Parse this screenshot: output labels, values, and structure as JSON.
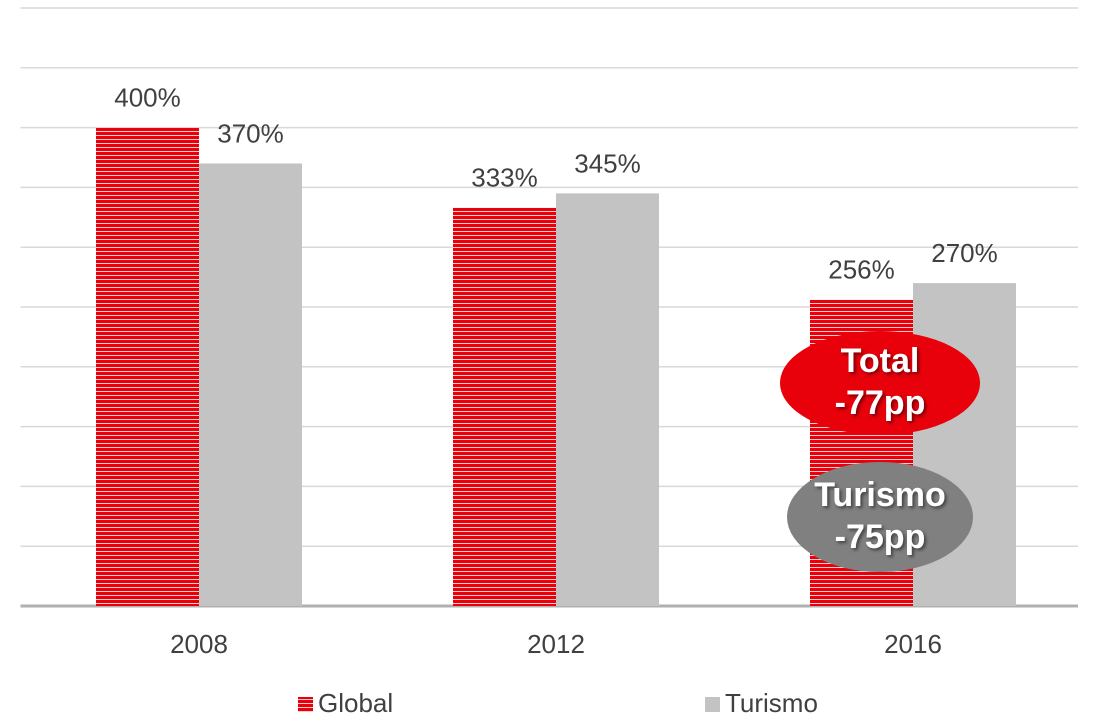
{
  "chart_data": {
    "type": "bar",
    "categories": [
      "2008",
      "2012",
      "2016"
    ],
    "series": [
      {
        "name": "Global",
        "color": "#e8000b",
        "values": [
          400,
          333,
          256
        ],
        "value_labels": [
          "400%",
          "333%",
          "256%"
        ]
      },
      {
        "name": "Turismo",
        "color": "#c3c3c3",
        "values": [
          370,
          345,
          270
        ],
        "value_labels": [
          "370%",
          "345%",
          "270%"
        ]
      }
    ],
    "ylim": [
      0,
      500
    ],
    "yticks": [
      0,
      50,
      100,
      150,
      200,
      250,
      300,
      350,
      400,
      450,
      500
    ],
    "grid": true,
    "annotations": [
      {
        "lines": [
          "Total",
          "-77pp"
        ],
        "color": "#e8000b"
      },
      {
        "lines": [
          "Turismo",
          "-75pp"
        ],
        "color": "#808080"
      }
    ]
  }
}
